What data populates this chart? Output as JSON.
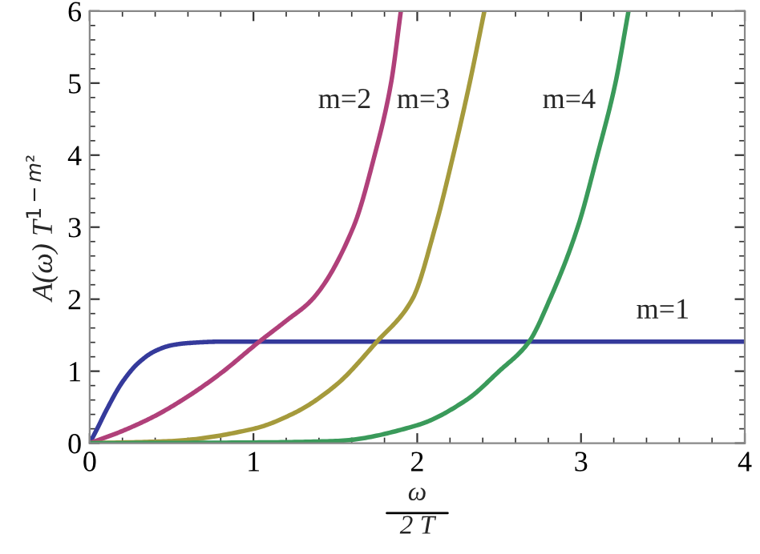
{
  "chart_data": {
    "type": "line",
    "xlabel": "ω\n2 T",
    "ylabel": "A(ω) T$^{1−m²}$",
    "xlim": [
      0,
      4
    ],
    "ylim": [
      0,
      6
    ],
    "xticks": [
      0,
      1,
      2,
      3,
      4
    ],
    "yticks": [
      0,
      1,
      2,
      3,
      4,
      5,
      6
    ],
    "grid": false,
    "legend": false,
    "marker": "none",
    "line_style": "solid",
    "series": [
      {
        "name": "m=1",
        "color": "#353a9b",
        "x": [
          0,
          0.05,
          0.1,
          0.2,
          0.3,
          0.4,
          0.5,
          0.6,
          0.8,
          1,
          2,
          3,
          4
        ],
        "values": [
          0,
          0.22,
          0.45,
          0.85,
          1.12,
          1.28,
          1.36,
          1.39,
          1.41,
          1.41,
          1.41,
          1.41,
          1.41
        ]
      },
      {
        "name": "m=2",
        "color": "#b0407a",
        "x": [
          0,
          0.2,
          0.4,
          0.6,
          0.8,
          1.03,
          1.2,
          1.36,
          1.61,
          1.74,
          1.84,
          1.9
        ],
        "values": [
          0,
          0.17,
          0.38,
          0.65,
          0.97,
          1.4,
          1.7,
          2,
          3,
          4,
          5,
          6
        ]
      },
      {
        "name": "m=3",
        "color": "#a59a3c",
        "x": [
          0,
          0.5,
          1,
          1.25,
          1.5,
          1.75,
          1.97,
          2.11,
          2.22,
          2.32,
          2.41
        ],
        "values": [
          0,
          0.03,
          0.2,
          0.42,
          0.8,
          1.4,
          2,
          3,
          4,
          5,
          6
        ]
      },
      {
        "name": "m=4",
        "color": "#3a9a5a",
        "x": [
          0,
          1,
          1.5,
          2,
          2.3,
          2.5,
          2.68,
          2.81,
          2.98,
          3.1,
          3.21,
          3.29
        ],
        "values": [
          0,
          0.01,
          0.03,
          0.25,
          0.6,
          1.0,
          1.4,
          2,
          3,
          4,
          5,
          6
        ]
      }
    ]
  }
}
